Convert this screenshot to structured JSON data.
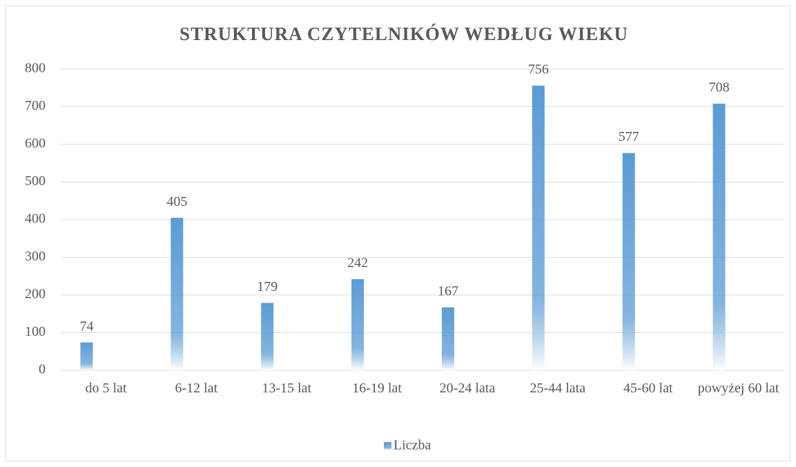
{
  "chart_data": {
    "type": "bar",
    "title": "STRUKTURA CZYTELNIKÓW WEDŁUG WIEKU",
    "categories": [
      "do 5 lat",
      "6-12 lat",
      "13-15 lat",
      "16-19 lat",
      "20-24 lata",
      "25-44 lata",
      "45-60 lat",
      "powyżej 60 lat"
    ],
    "series": [
      {
        "name": "Liczba",
        "color": "#5b9bd5",
        "values": [
          74,
          405,
          179,
          242,
          167,
          756,
          577,
          708
        ]
      }
    ],
    "ylim": [
      0,
      800
    ],
    "yticks": [
      0,
      100,
      200,
      300,
      400,
      500,
      600,
      700,
      800
    ],
    "grid": true,
    "legend": "bottom"
  }
}
